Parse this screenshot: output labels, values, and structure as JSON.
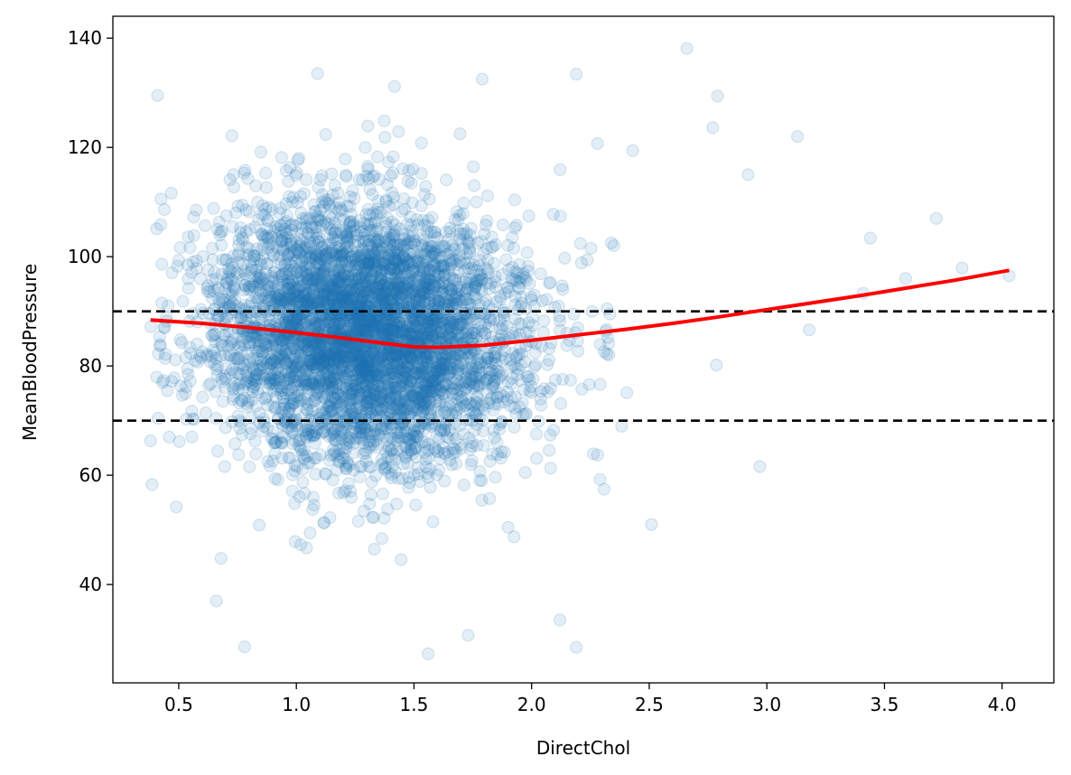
{
  "chart_data": {
    "type": "scatter",
    "title": "",
    "xlabel": "DirectChol",
    "ylabel": "MeanBloodPressure",
    "xlim": [
      0.22,
      4.22
    ],
    "ylim": [
      22,
      144
    ],
    "x_ticks": [
      0.5,
      1.0,
      1.5,
      2.0,
      2.5,
      3.0,
      3.5,
      4.0
    ],
    "x_tick_labels": [
      "0.5",
      "1.0",
      "1.5",
      "2.0",
      "2.5",
      "3.0",
      "3.5",
      "4.0"
    ],
    "y_ticks": [
      40,
      60,
      80,
      100,
      120,
      140
    ],
    "y_tick_labels": [
      "40",
      "60",
      "80",
      "100",
      "120",
      "140"
    ],
    "grid": false,
    "scatter_color": "#1f77b4",
    "scatter_alpha": 0.12,
    "approx_point_count": 5000,
    "scatter_center_x": 1.3,
    "scatter_center_y": 86,
    "scatter_sd_x": 0.3,
    "scatter_sd_y": 12,
    "scatter_x_range": [
      0.38,
      4.03
    ],
    "scatter_y_range": [
      27,
      138
    ],
    "highlighted_points": [
      {
        "x": 0.38,
        "y": 66.3
      },
      {
        "x": 0.41,
        "y": 129.5
      },
      {
        "x": 0.49,
        "y": 54.2
      },
      {
        "x": 0.47,
        "y": 77.2
      },
      {
        "x": 0.66,
        "y": 37.0
      },
      {
        "x": 0.78,
        "y": 28.6
      },
      {
        "x": 1.09,
        "y": 133.5
      },
      {
        "x": 1.56,
        "y": 27.3
      },
      {
        "x": 1.73,
        "y": 30.7
      },
      {
        "x": 1.79,
        "y": 132.5
      },
      {
        "x": 2.19,
        "y": 133.4
      },
      {
        "x": 2.19,
        "y": 28.5
      },
      {
        "x": 2.66,
        "y": 138.1
      },
      {
        "x": 2.77,
        "y": 123.6
      },
      {
        "x": 2.79,
        "y": 129.4
      },
      {
        "x": 3.13,
        "y": 122.0
      },
      {
        "x": 2.92,
        "y": 115.0
      },
      {
        "x": 2.97,
        "y": 61.6
      },
      {
        "x": 3.18,
        "y": 86.6
      },
      {
        "x": 3.44,
        "y": 103.4
      },
      {
        "x": 3.59,
        "y": 96.0
      },
      {
        "x": 3.72,
        "y": 107.0
      },
      {
        "x": 3.83,
        "y": 97.9
      },
      {
        "x": 4.03,
        "y": 96.5
      },
      {
        "x": 3.41,
        "y": 93.3
      },
      {
        "x": 2.51,
        "y": 51.0
      },
      {
        "x": 2.43,
        "y": 119.4
      },
      {
        "x": 2.28,
        "y": 120.7
      },
      {
        "x": 2.12,
        "y": 33.5
      },
      {
        "x": 0.68,
        "y": 44.8
      }
    ],
    "series": [
      {
        "type": "line",
        "color": "#ff0000",
        "x": [
          0.38,
          0.6,
          0.8,
          1.0,
          1.2,
          1.4,
          1.5,
          1.6,
          1.8,
          2.0,
          2.2,
          2.4,
          2.6,
          2.8,
          3.0,
          3.2,
          3.4,
          3.6,
          3.8,
          4.03
        ],
        "y": [
          88.4,
          87.8,
          87.0,
          86.1,
          85.1,
          84.0,
          83.5,
          83.4,
          83.8,
          84.7,
          85.7,
          86.7,
          87.8,
          89.0,
          90.3,
          91.6,
          92.9,
          94.3,
          95.7,
          97.5
        ]
      }
    ],
    "hlines": [
      {
        "y": 90,
        "color": "#000000",
        "style": "dashed"
      },
      {
        "y": 70,
        "color": "#000000",
        "style": "dashed"
      }
    ]
  }
}
